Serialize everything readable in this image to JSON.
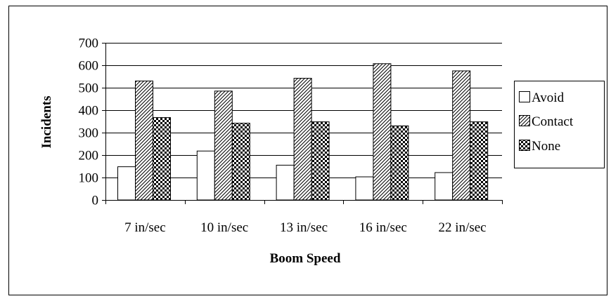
{
  "chart_data": {
    "type": "bar",
    "title": "",
    "xlabel": "Boom Speed",
    "ylabel": "Incidents",
    "ylim": [
      0,
      700
    ],
    "yticks": [
      0,
      100,
      200,
      300,
      400,
      500,
      600,
      700
    ],
    "grid": true,
    "legend_position": "right",
    "categories": [
      "7 in/sec",
      "10 in/sec",
      "13 in/sec",
      "16 in/sec",
      "22 in/sec"
    ],
    "series": [
      {
        "name": "Avoid",
        "values": [
          148,
          218,
          155,
          103,
          122
        ],
        "pattern": "solid-white"
      },
      {
        "name": "Contact",
        "values": [
          530,
          485,
          542,
          607,
          575
        ],
        "pattern": "diagonal-hatch"
      },
      {
        "name": "None",
        "values": [
          367,
          342,
          348,
          330,
          348
        ],
        "pattern": "checkerboard"
      }
    ]
  }
}
